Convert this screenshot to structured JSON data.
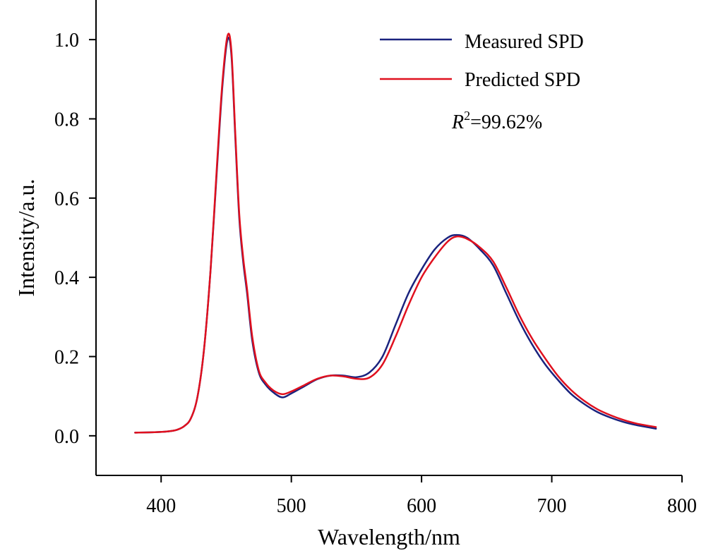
{
  "chart_data": {
    "type": "line",
    "title": "",
    "xlabel": "Wavelength/nm",
    "ylabel": "Intensity/a.u.",
    "xlim": [
      350,
      800
    ],
    "ylim": [
      -0.1,
      1.1
    ],
    "x_ticks": [
      "400",
      "500",
      "600",
      "700",
      "800"
    ],
    "y_ticks": [
      "0.0",
      "0.2",
      "0.4",
      "0.6",
      "0.8",
      "1.0"
    ],
    "grid": false,
    "legend_position": "top-right",
    "annotation": {
      "symbol": "R",
      "superscript": "2",
      "text": "=99.62%"
    },
    "series": [
      {
        "name": "Measured SPD",
        "color": "#1a237e",
        "points": [
          [
            380,
            0.008
          ],
          [
            395,
            0.009
          ],
          [
            405,
            0.011
          ],
          [
            412,
            0.015
          ],
          [
            418,
            0.025
          ],
          [
            423,
            0.045
          ],
          [
            428,
            0.1
          ],
          [
            433,
            0.22
          ],
          [
            438,
            0.42
          ],
          [
            443,
            0.68
          ],
          [
            447,
            0.88
          ],
          [
            451,
            1.0
          ],
          [
            454,
            0.96
          ],
          [
            457,
            0.75
          ],
          [
            460,
            0.55
          ],
          [
            463,
            0.44
          ],
          [
            466,
            0.36
          ],
          [
            470,
            0.24
          ],
          [
            475,
            0.16
          ],
          [
            480,
            0.13
          ],
          [
            486,
            0.11
          ],
          [
            493,
            0.097
          ],
          [
            500,
            0.107
          ],
          [
            510,
            0.125
          ],
          [
            520,
            0.143
          ],
          [
            530,
            0.152
          ],
          [
            540,
            0.152
          ],
          [
            550,
            0.148
          ],
          [
            560,
            0.16
          ],
          [
            570,
            0.2
          ],
          [
            580,
            0.28
          ],
          [
            590,
            0.36
          ],
          [
            600,
            0.42
          ],
          [
            610,
            0.47
          ],
          [
            620,
            0.5
          ],
          [
            627,
            0.507
          ],
          [
            635,
            0.5
          ],
          [
            645,
            0.47
          ],
          [
            655,
            0.43
          ],
          [
            665,
            0.36
          ],
          [
            675,
            0.29
          ],
          [
            685,
            0.23
          ],
          [
            695,
            0.18
          ],
          [
            705,
            0.14
          ],
          [
            715,
            0.105
          ],
          [
            725,
            0.08
          ],
          [
            735,
            0.06
          ],
          [
            745,
            0.046
          ],
          [
            755,
            0.035
          ],
          [
            765,
            0.027
          ],
          [
            780,
            0.018
          ]
        ]
      },
      {
        "name": "Predicted SPD",
        "color": "#e0101e",
        "points": [
          [
            380,
            0.008
          ],
          [
            395,
            0.009
          ],
          [
            405,
            0.011
          ],
          [
            412,
            0.015
          ],
          [
            418,
            0.025
          ],
          [
            423,
            0.045
          ],
          [
            428,
            0.1
          ],
          [
            433,
            0.22
          ],
          [
            438,
            0.42
          ],
          [
            443,
            0.69
          ],
          [
            447,
            0.89
          ],
          [
            451,
            1.01
          ],
          [
            454,
            0.97
          ],
          [
            457,
            0.76
          ],
          [
            460,
            0.56
          ],
          [
            463,
            0.45
          ],
          [
            466,
            0.37
          ],
          [
            470,
            0.25
          ],
          [
            475,
            0.165
          ],
          [
            480,
            0.135
          ],
          [
            486,
            0.115
          ],
          [
            493,
            0.105
          ],
          [
            500,
            0.112
          ],
          [
            510,
            0.128
          ],
          [
            520,
            0.144
          ],
          [
            530,
            0.152
          ],
          [
            540,
            0.15
          ],
          [
            550,
            0.144
          ],
          [
            560,
            0.147
          ],
          [
            570,
            0.18
          ],
          [
            580,
            0.25
          ],
          [
            590,
            0.33
          ],
          [
            600,
            0.4
          ],
          [
            610,
            0.45
          ],
          [
            620,
            0.49
          ],
          [
            627,
            0.503
          ],
          [
            635,
            0.497
          ],
          [
            645,
            0.475
          ],
          [
            655,
            0.44
          ],
          [
            665,
            0.375
          ],
          [
            675,
            0.305
          ],
          [
            685,
            0.245
          ],
          [
            695,
            0.195
          ],
          [
            705,
            0.15
          ],
          [
            715,
            0.115
          ],
          [
            725,
            0.088
          ],
          [
            735,
            0.067
          ],
          [
            745,
            0.052
          ],
          [
            755,
            0.04
          ],
          [
            765,
            0.031
          ],
          [
            780,
            0.022
          ]
        ]
      }
    ]
  }
}
